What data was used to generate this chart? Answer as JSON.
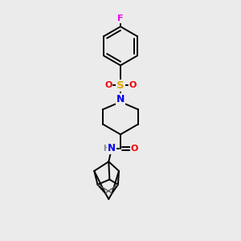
{
  "bg_color": "#ebebeb",
  "atom_colors": {
    "C": "#000000",
    "N": "#0000ee",
    "O": "#ee0000",
    "S": "#ddaa00",
    "F": "#ee00ee",
    "H": "#000000"
  },
  "line_color": "#000000",
  "line_width": 1.4,
  "figsize": [
    3.0,
    3.0
  ],
  "dpi": 100
}
